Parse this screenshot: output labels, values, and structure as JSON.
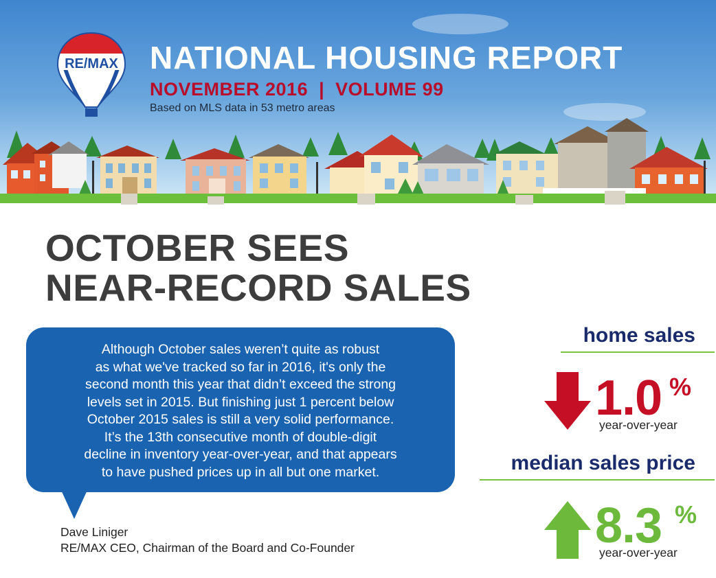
{
  "header": {
    "brand": "RE/MAX",
    "title": "NATIONAL HOUSING REPORT",
    "issue": "NOVEMBER 2016  |  VOLUME 99",
    "subtitle": "Based on MLS data in 53 metro areas"
  },
  "headline": {
    "line1": "OCTOBER SEES",
    "line2": "NEAR-RECORD SALES"
  },
  "quote": {
    "lines": [
      "Although October sales weren’t quite as robust",
      "as what we've tracked so far in 2016, it's only the",
      "second month this year that didn’t exceed the strong",
      "levels set in 2015. But finishing just 1 percent below",
      "October 2015 sales is still a very solid performance.",
      "It’s the 13th consecutive month of double-digit",
      "decline in inventory year-over-year, and that appears",
      "to have pushed prices up in all but one market."
    ],
    "author": "Dave Liniger",
    "author_title": "RE/MAX CEO, Chairman of the Board and Co-Founder",
    "bubble_color": "#1a63b0"
  },
  "stats": {
    "home_sales": {
      "label": "home sales",
      "value": "1.0",
      "unit": "%",
      "period": "year-over-year",
      "direction": "down",
      "arrow_icon": "down-arrow-icon",
      "color": "#c50f24"
    },
    "median_price": {
      "label": "median sales price",
      "value": "8.3",
      "unit": "%",
      "period": "year-over-year",
      "direction": "up",
      "arrow_icon": "up-arrow-icon",
      "color": "#6cb93c"
    }
  },
  "colors": {
    "title_red": "#b80e2c",
    "label_navy": "#1a2b6b",
    "rule_green": "#79c143",
    "headline_gray": "#3d3d3d"
  }
}
